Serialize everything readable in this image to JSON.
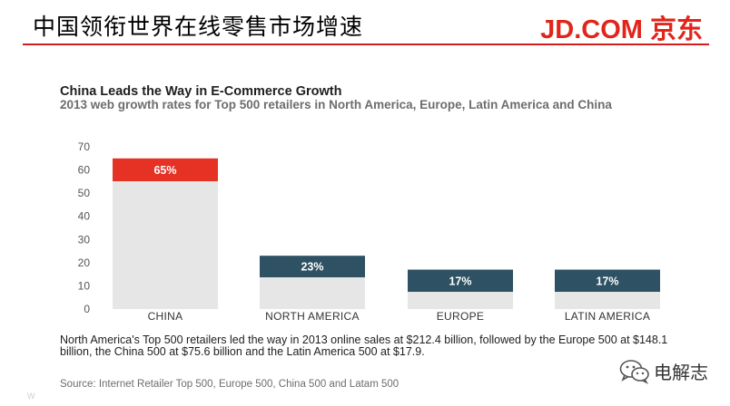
{
  "slide": {
    "title": "中国领衔世界在线零售市场增速",
    "logo_text": "JD.COM 京东",
    "brand_color": "#e1251b"
  },
  "chart_data": {
    "type": "bar",
    "title": "China Leads the Way in E-Commerce Growth",
    "subtitle": "2013 web growth rates for Top 500 retailers in North America, Europe, Latin America and China",
    "categories": [
      "CHINA",
      "NORTH AMERICA",
      "EUROPE",
      "LATIN AMERICA"
    ],
    "values": [
      65,
      23,
      17,
      17
    ],
    "value_labels": [
      "65%",
      "23%",
      "17%",
      "17%"
    ],
    "bar_colors": [
      "#e53224",
      "#2e5164",
      "#2e5164",
      "#2e5164"
    ],
    "background_bar_color": "#e6e6e6",
    "ylim": [
      0,
      70
    ],
    "yticks": [
      0,
      10,
      20,
      30,
      40,
      50,
      60,
      70
    ],
    "grid": false,
    "xlabel": "",
    "ylabel": ""
  },
  "note": "North America's Top 500 retailers led the way in 2013 online sales at $212.4 billion, followed by the Europe 500 at $148.1 billion, the China 500 at $75.6 billion and the Latin America 500 at $17.9.",
  "source": "Source: Internet Retailer Top 500, Europe 500, China 500 and Latam 500",
  "watermark": {
    "name": "电解志",
    "icon": "wechat-icon"
  },
  "corner_mark": "W"
}
